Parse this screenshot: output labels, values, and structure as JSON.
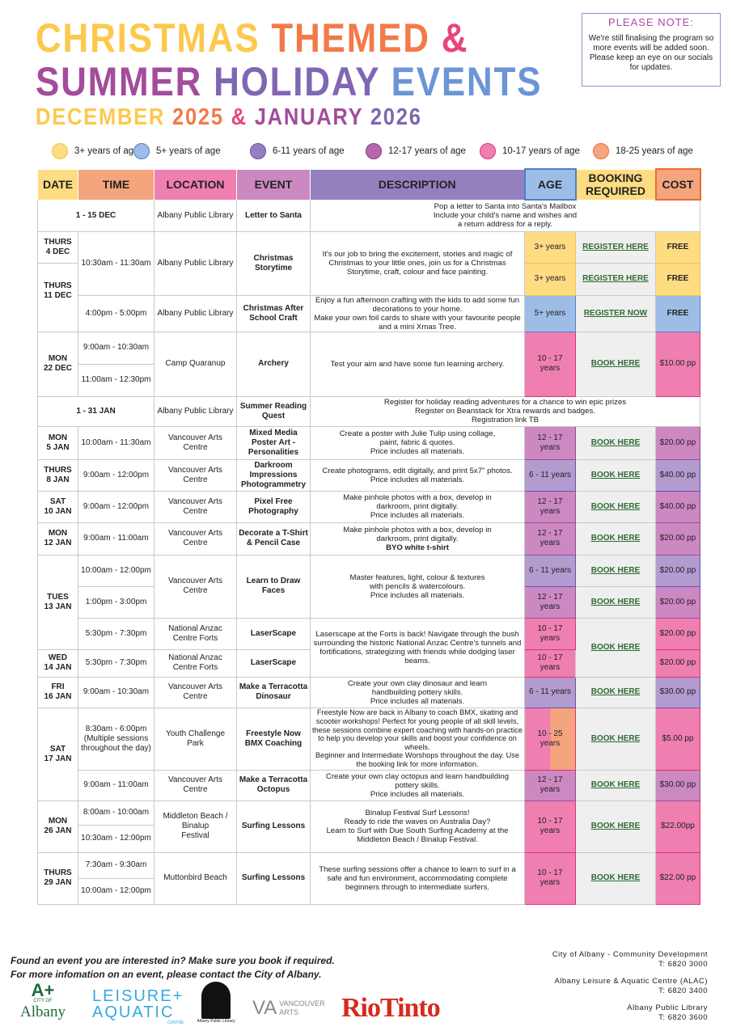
{
  "title": {
    "line1": [
      {
        "text": "CHRISTMAS",
        "color": "#fcc94d"
      },
      {
        "text": "THEMED",
        "color": "#f27a4a"
      },
      {
        "text": "&",
        "color": "#e8457f"
      }
    ],
    "line2": [
      {
        "text": "SUMMER",
        "color": "#a34c9c"
      },
      {
        "text": "HOLIDAY",
        "color": "#8066b3"
      },
      {
        "text": "EVENTS",
        "color": "#6b95d6"
      }
    ],
    "line3": [
      {
        "text": "DECEMBER",
        "color": "#fcc94d"
      },
      {
        "text": "2025",
        "color": "#f27a4a"
      },
      {
        "text": "&",
        "color": "#e8457f"
      },
      {
        "text": "JANUARY",
        "color": "#a34c9c"
      },
      {
        "text": "2026",
        "color": "#8066b3"
      }
    ]
  },
  "note": {
    "title": "PLEASE NOTE:",
    "text": "We're still finalising the program so more events will be added soon. Please keep an eye on our socials for updates."
  },
  "legend": [
    {
      "label": "3+ years of age",
      "color": "#fddc82"
    },
    {
      "label": "5+ years of age",
      "color": "#9dbde6"
    },
    {
      "label": "6-11 years of age",
      "color": "#9580bf"
    },
    {
      "label": "12-17 years of age",
      "color": "#b767ab"
    },
    {
      "label": "10-17 years of age",
      "color": "#ef7fb0"
    },
    {
      "label": "18-25 years of age",
      "color": "#f4a57e"
    }
  ],
  "headers": [
    "DATE",
    "TIME",
    "LOCATION",
    "EVENT",
    "DESCRIPTION",
    "AGE",
    "BOOKING\nREQUIRED",
    "COST"
  ],
  "header_colors": [
    "#fddc82",
    "#f4a57e",
    "#ef7fb0",
    "#cc88c1",
    "#9580bf",
    "#9dbde6",
    "#fddc82",
    "#f4a57e"
  ],
  "rows": [
    {
      "date": "1 - 15 DEC",
      "location": "Albany Public Library",
      "event": "Letter to Santa",
      "description": "Pop a letter to Santa into Santa's Mailbox\nInclude your child's name and wishes and\na return address for a reply."
    },
    {
      "dates": [
        "THURS\n4 DEC",
        "THURS\n11 DEC"
      ],
      "time": "10:30am - 11:30am",
      "location": "Albany Public Library",
      "event": "Christmas\nStorytime",
      "description": "It's our job to bring the excitement, stories and magic of Christmas to your little ones, join us for a Christmas Storytime, craft, colour and face painting.",
      "sessions": [
        {
          "age": "3+ years",
          "booking": "REGISTER HERE",
          "cost": "FREE"
        },
        {
          "age": "3+ years",
          "booking": "REGISTER HERE",
          "cost": "FREE"
        }
      ]
    },
    {
      "time": "4:00pm - 5:00pm",
      "location": "Albany Public Library",
      "event": "Christmas After\nSchool Craft",
      "description": "Enjoy a fun afternoon crafting with the kids to add some fun decorations to your home.\nMake your own foil cards to share with your favourite people and a mini Xmas Tree.",
      "age": "5+ years",
      "booking": "REGISTER NOW",
      "cost": "FREE"
    },
    {
      "date": "MON\n22 DEC",
      "times": [
        "9:00am - 10:30am",
        "11:00am - 12:30pm"
      ],
      "location": "Camp Quaranup",
      "event": "Archery",
      "description": "Test your aim and have some fun learning archery.",
      "age": "10 - 17 years",
      "booking": "BOOK HERE",
      "cost": "$10.00 pp"
    },
    {
      "date": "1 - 31 JAN",
      "location": "Albany Public Library",
      "event": "Summer Reading\nQuest",
      "description": "Register for holiday reading adventures for a chance to win epic prizes\nRegister on Beanstack for Xtra rewards and badges.\nRegistration link TB"
    },
    {
      "date": "MON\n5 JAN",
      "time": "10:00am - 11:30am",
      "location": "Vancouver Arts\nCentre",
      "event": "Mixed Media\nPoster Art -\nPersonalities",
      "description": "Create a poster with Julie Tulip using collage,\npaint, fabric & quotes.\nPrice includes all materials.",
      "age": "12 - 17 years",
      "booking": "BOOK HERE",
      "cost": "$20.00 pp"
    },
    {
      "date": "THURS\n8 JAN",
      "time": "9:00am - 12:00pm",
      "location": "Vancouver Arts\nCentre",
      "event": "Darkroom\nImpressions\nPhotogrammetry",
      "description": "Create photograms, edit digitally, and print 5x7\" photos.\nPrice includes all materials.",
      "age": "6 - 11 years",
      "booking": "BOOK HERE",
      "cost": "$40.00 pp"
    },
    {
      "date": "SAT\n10 JAN",
      "time": "9:00am - 12:00pm",
      "location": "Vancouver Arts\nCentre",
      "event": "Pixel Free\nPhotography",
      "description": "Make pinhole photos with a box, develop in\ndarkroom, print digitally.\nPrice includes all materials.",
      "age": "12 - 17 years",
      "booking": "BOOK HERE",
      "cost": "$40.00 pp"
    },
    {
      "date": "MON\n12 JAN",
      "time": "9:00am - 11:00am",
      "location": "Vancouver Arts\nCentre",
      "event": "Decorate a T-Shirt\n& Pencil Case",
      "description": "Make pinhole photos with a box, develop in\ndarkroom, print digitally.",
      "description_bold": "BYO white t-shirt",
      "age": "12 - 17 years",
      "booking": "BOOK HERE",
      "cost": "$20.00 pp"
    },
    {
      "date": "TUES\n13 JAN",
      "times": [
        "10:00am - 12:00pm",
        "1:00pm - 3:00pm"
      ],
      "location": "Vancouver Arts\nCentre",
      "event": "Learn to Draw\nFaces",
      "description": "Master features, light, colour & textures\nwith pencils & watercolours.\nPrice includes all materials.",
      "sessions": [
        {
          "age": "6 - 11 years",
          "booking": "BOOK HERE",
          "cost": "$20.00 pp"
        },
        {
          "age": "12 - 17 years",
          "booking": "BOOK HERE",
          "cost": "$20.00 pp"
        }
      ]
    },
    {
      "time": "5:30pm - 7:30pm",
      "location": "National Anzac\nCentre Forts",
      "event": "LaserScape",
      "description": "Laserscape at the Forts is back! Navigate through the bush surrounding the historic National Anzac Centre's tunnels and fortifications, strategizing with friends while dodging laser beams.",
      "age": "10 - 17 years",
      "booking": "BOOK HERE",
      "cost": "$20.00 pp"
    },
    {
      "date": "WED\n14 JAN",
      "time": "5:30pm - 7:30pm",
      "location": "National Anzac\nCentre Forts",
      "event": "LaserScape",
      "age": "10 - 17 years",
      "cost": "$20.00 pp"
    },
    {
      "date": "FRI\n16 JAN",
      "time": "9:00am - 10:30am",
      "location": "Vancouver Arts\nCentre",
      "event": "Make a Terracotta\nDinosaur",
      "description": "Create your own clay dinosaur and learn\nhandbuilding pottery skills.\nPrice includes all materials.",
      "age": "6 - 11 years",
      "booking": "BOOK HERE",
      "cost": "$30.00 pp"
    },
    {
      "date": "SAT\n17 JAN",
      "time": "8:30am - 6:00pm\n(Multiple sessions\nthroughout the day)",
      "location": "Youth Challenge\nPark",
      "event": "Freestyle Now\nBMX Coaching",
      "description": "Freestyle Now are back in Albany to coach BMX, skating and scooter workshops! Perfect for young people of all skill levels, these sessions combine expert coaching with hands-on practice to help you develop your skills and boost your confidence on wheels.\nBeginner and Intermediate Worshops throughout the day. Use the booking link for more information.",
      "age": "10 - 25 years",
      "booking": "BOOK HERE",
      "cost": "$5.00 pp"
    },
    {
      "time": "9:00am - 11:00am",
      "location": "Vancouver Arts\nCentre",
      "event": "Make a Terracotta\nOctopus",
      "description": "Create your own clay octopus and learn handbuilding\npottery skills.\nPrice includes all materials.",
      "age": "12 - 17 years",
      "booking": "BOOK HERE",
      "cost": "$30.00 pp"
    },
    {
      "date": "MON\n26 JAN",
      "times": [
        "8:00am - 10:00am",
        "10:30am - 12:00pm"
      ],
      "location": "Middleton Beach /\nBinalup\nFestival",
      "event": "Surfing Lessons",
      "description": "Binalup Festival Surf Lessons!\nReady to ride the waves on Australia Day?\nLearn to Surf with Due South Surfing Academy at the Middleton Beach / Binalup Festival.",
      "age": "10 - 17 years",
      "booking": "BOOK HERE",
      "cost": "$22.00pp"
    },
    {
      "date": "THURS\n29 JAN",
      "times": [
        "7:30am - 9:30am",
        "10:00am - 12:00pm"
      ],
      "location": "Muttonbird Beach",
      "event": "Surfing Lessons",
      "description": "These surfing sessions offer a chance to learn to surf in a safe and fun environment, accommodating complete beginners through to intermediate surfers.",
      "age": "10 - 17 years",
      "booking": "BOOK HERE",
      "cost": "$22.00 pp"
    }
  ],
  "footer": {
    "line1": "Found an event you are interested in?  Make sure you book if required.",
    "line2": "For more infomation on an event, please contact the City of Albany.",
    "contacts": [
      {
        "name": "City of Albany - Community Development",
        "phone": "T: 6820 3000"
      },
      {
        "name": "Albany Leisure & Aquatic Centre (ALAC)",
        "phone": "T: 6820 3400"
      },
      {
        "name": "Albany Public Library",
        "phone": "T: 6820 3600"
      }
    ],
    "logos": {
      "albany": "Albany",
      "albany_small": "CITY OF",
      "leisure": "LEISURE+",
      "aquatic": "AQUATIC",
      "centre": "CENTRE",
      "library": "Albany Public Library",
      "vancouver": "VANCOUVER",
      "arts": "ARTS",
      "riotinto": "RioTinto"
    }
  }
}
